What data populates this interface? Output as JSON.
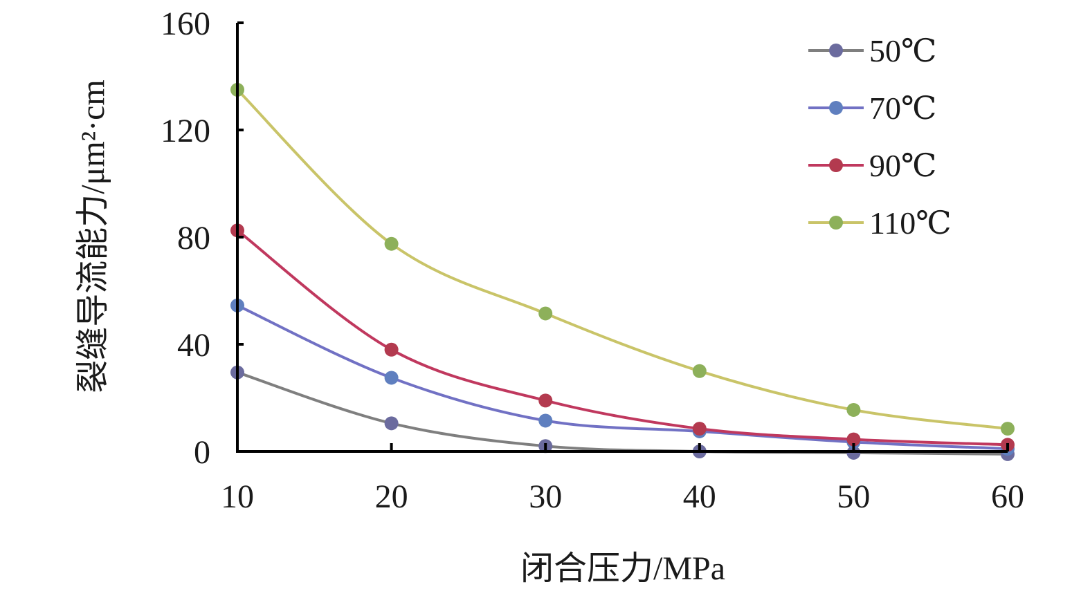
{
  "chart_data": {
    "type": "line",
    "title": "",
    "xlabel": "闭合压力/MPa",
    "ylabel": "裂缝导流能力/μm²·cm",
    "x": [
      10,
      20,
      30,
      40,
      50,
      60
    ],
    "xlim": [
      10,
      60
    ],
    "ylim": [
      0,
      160
    ],
    "xticks": [
      "10",
      "20",
      "30",
      "40",
      "50",
      "60"
    ],
    "yticks": [
      "0",
      "40",
      "80",
      "120",
      "160"
    ],
    "grid": false,
    "legend_position": "top-right",
    "smooth": true,
    "series": [
      {
        "name": "50℃",
        "values": [
          29.5,
          10.5,
          2,
          0,
          -0.5,
          -1
        ],
        "line_color": "#7f7f7f",
        "marker_color": "#6b6b9e"
      },
      {
        "name": "70℃",
        "values": [
          54.5,
          27.5,
          11.5,
          7.5,
          3.5,
          1
        ],
        "line_color": "#7171c4",
        "marker_color": "#5f7fbf"
      },
      {
        "name": "90℃",
        "values": [
          82.5,
          38,
          19,
          8.5,
          4.5,
          2.5
        ],
        "line_color": "#c0385e",
        "marker_color": "#b33a4f"
      },
      {
        "name": "110℃",
        "values": [
          135,
          77.5,
          51.5,
          30,
          15.5,
          8.5
        ],
        "line_color": "#c9c468",
        "marker_color": "#8db05a"
      }
    ]
  }
}
